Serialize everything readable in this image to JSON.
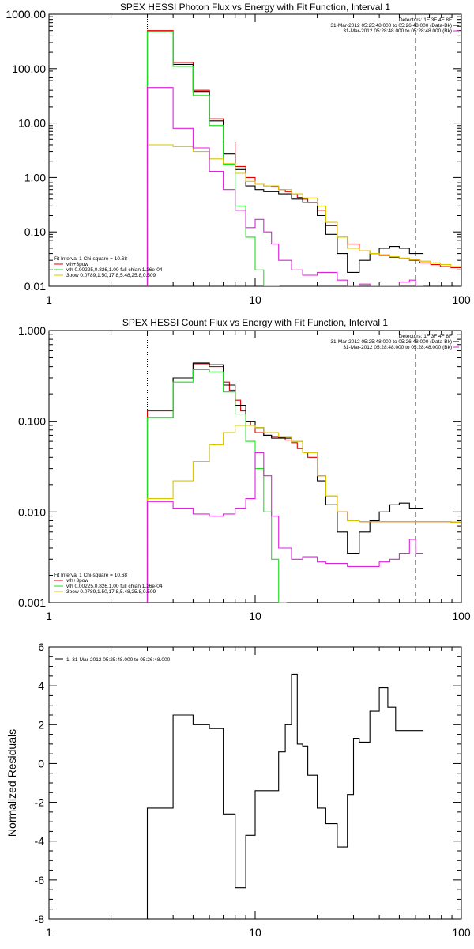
{
  "colors": {
    "black": "#000000",
    "red": "#e00000",
    "green": "#22dd22",
    "magenta": "#dd22dd",
    "gold": "#d9c400"
  },
  "chart_data": [
    {
      "type": "line",
      "title": "SPEX HESSI Photon Flux vs Energy with Fit Function, Interval 1",
      "xlabel": "",
      "ylabel": "",
      "xscale": "log",
      "yscale": "log",
      "xlim": [
        1,
        100
      ],
      "ylim": [
        0.01,
        1000
      ],
      "xticks": [
        "1",
        "10",
        "100"
      ],
      "yticks": [
        "0.01",
        "0.10",
        "1.00",
        "10.00",
        "100.00",
        "1000.00"
      ],
      "header": [
        "Detectors: 1F 3F 4F 8F",
        "31-Mar-2012 05:25:48.000 to 05:26:48.000 (Data-Bk)",
        "31-Mar-2012 05:28:48.000 to 05:28:48.000 (Bk)"
      ],
      "legend": [
        "Fit Interval 1    Chi-square = 10.68",
        "vth+3pow",
        "vth 0.00225,0.826,1.00   full chian 1.26e-04",
        "3pow 0.0789,1.50,17.8,5.48,25.8,0.509"
      ],
      "vlines": [
        3.0,
        60
      ],
      "series": [
        {
          "name": "vth+3pow",
          "color": "red",
          "x": [
            3.0,
            3.5,
            4.0,
            4.5,
            5.0,
            5.5,
            6.0,
            6.5,
            7.0,
            7.5,
            8.0,
            8.5,
            9.0,
            9.5,
            10,
            11,
            12,
            13,
            14,
            15,
            16,
            17,
            18,
            20,
            22,
            25,
            28,
            32,
            36,
            40,
            45,
            50,
            56,
            63,
            71,
            79,
            89,
            100
          ],
          "y": [
            500,
            500,
            130,
            130,
            40,
            40,
            12,
            12,
            4.5,
            4.5,
            1.6,
            1.6,
            1.0,
            1.0,
            0.75,
            0.7,
            0.68,
            0.6,
            0.55,
            0.5,
            0.43,
            0.4,
            0.35,
            0.25,
            0.13,
            0.08,
            0.06,
            0.045,
            0.04,
            0.037,
            0.034,
            0.032,
            0.03,
            0.027,
            0.025,
            0.023,
            0.022,
            0.021
          ]
        },
        {
          "name": "data",
          "color": "black",
          "x": [
            3.0,
            4.0,
            5.0,
            6.0,
            7.0,
            8.0,
            9.0,
            10,
            11,
            13,
            15,
            17,
            20,
            22,
            25,
            28,
            32,
            36,
            40,
            45,
            50,
            56,
            60
          ],
          "y": [
            480,
            120,
            38,
            11,
            2.7,
            1.4,
            0.7,
            0.6,
            0.55,
            0.5,
            0.4,
            0.35,
            0.2,
            0.09,
            0.04,
            0.018,
            0.03,
            0.04,
            0.05,
            0.054,
            0.05,
            0.04,
            0.04
          ]
        },
        {
          "name": "vth",
          "color": "green",
          "x": [
            3.0,
            4.0,
            5.0,
            6.0,
            7.0,
            8.0,
            9.0,
            10,
            11,
            12
          ],
          "y": [
            480,
            110,
            32,
            9,
            1.7,
            0.3,
            0.08,
            0.02,
            0.008,
            0.004
          ]
        },
        {
          "name": "3pow",
          "color": "gold",
          "x": [
            3.0,
            4.0,
            5.0,
            6.0,
            7.0,
            8.0,
            9.0,
            10,
            11,
            13,
            15,
            17,
            20,
            22,
            25,
            28,
            32,
            36,
            40,
            45,
            50,
            56,
            63,
            71,
            79,
            89,
            100
          ],
          "y": [
            4.0,
            3.7,
            3.0,
            2.2,
            1.8,
            1.2,
            0.85,
            0.75,
            0.7,
            0.6,
            0.5,
            0.42,
            0.3,
            0.15,
            0.08,
            0.05,
            0.045,
            0.04,
            0.038,
            0.035,
            0.033,
            0.031,
            0.029,
            0.027,
            0.025,
            0.023,
            0.022
          ]
        },
        {
          "name": "bk",
          "color": "magenta",
          "x": [
            3.0,
            4.0,
            5.0,
            6.0,
            7.0,
            8.0,
            9.0,
            10,
            11,
            12,
            13,
            15,
            17,
            20,
            22,
            25,
            28,
            32,
            36,
            40,
            45,
            50,
            56,
            60
          ],
          "y": [
            45,
            8,
            3.5,
            1.3,
            0.6,
            0.25,
            0.12,
            0.17,
            0.1,
            0.06,
            0.03,
            0.02,
            0.016,
            0.018,
            0.018,
            0.013,
            0.009,
            0.011,
            0.009,
            0.009,
            0.01,
            0.012,
            0.013,
            0.009
          ]
        }
      ]
    },
    {
      "type": "line",
      "title": "SPEX HESSI Count Flux vs Energy with Fit Function, Interval 1",
      "xlabel": "",
      "ylabel": "",
      "xscale": "log",
      "yscale": "log",
      "xlim": [
        1,
        100
      ],
      "ylim": [
        0.001,
        1.0
      ],
      "xticks": [
        "1",
        "10",
        "100"
      ],
      "yticks": [
        "0.001",
        "0.010",
        "0.100",
        "1.000"
      ],
      "header": [
        "Detectors: 1F 3F 4F 8F",
        "31-Mar-2012 05:25:48.000 to 05:26:48.000 (Data-Bk)",
        "31-Mar-2012 05:28:48.000 to 05:28:48.000 (Bk)"
      ],
      "legend": [
        "Fit Interval 1    Chi-square = 10.68",
        "vth+3pow",
        "vth 0.00225,0.826,1.00   full chian 1.26e-04",
        "3pow 0.0789,1.50,17.8,5.48,25.8,0.509"
      ],
      "vlines": [
        3.0,
        60
      ],
      "series": [
        {
          "name": "vth+3pow",
          "color": "red",
          "x": [
            3.0,
            4.0,
            5.0,
            6.0,
            7.0,
            7.5,
            8.0,
            8.5,
            9.0,
            9.5,
            10,
            11,
            12,
            13,
            14,
            15,
            16,
            17,
            18,
            20,
            22,
            25,
            28,
            32,
            36,
            40,
            45,
            50,
            56,
            63,
            71,
            79,
            89,
            100
          ],
          "y": [
            0.13,
            0.3,
            0.43,
            0.4,
            0.27,
            0.22,
            0.17,
            0.13,
            0.1,
            0.09,
            0.075,
            0.07,
            0.068,
            0.066,
            0.062,
            0.058,
            0.05,
            0.045,
            0.04,
            0.025,
            0.015,
            0.01,
            0.008,
            0.0078,
            0.0078,
            0.0078,
            0.0078,
            0.0078,
            0.0078,
            0.0078,
            0.0078,
            0.0078,
            0.0077,
            0.0075
          ]
        },
        {
          "name": "data",
          "color": "black",
          "x": [
            3.0,
            4.0,
            5.0,
            6.0,
            7.0,
            8.0,
            9.0,
            10,
            11,
            12,
            13,
            15,
            17,
            20,
            22,
            25,
            28,
            32,
            36,
            40,
            45,
            50,
            56,
            60
          ],
          "y": [
            0.11,
            0.3,
            0.44,
            0.42,
            0.25,
            0.15,
            0.1,
            0.085,
            0.07,
            0.065,
            0.065,
            0.06,
            0.045,
            0.022,
            0.012,
            0.006,
            0.0035,
            0.006,
            0.008,
            0.01,
            0.012,
            0.0125,
            0.011,
            0.011
          ]
        },
        {
          "name": "vth",
          "color": "green",
          "x": [
            3.0,
            4.0,
            5.0,
            6.0,
            7.0,
            8.0,
            9.0,
            10,
            11,
            12,
            13
          ],
          "y": [
            0.11,
            0.27,
            0.37,
            0.35,
            0.21,
            0.12,
            0.06,
            0.03,
            0.01,
            0.003,
            0.001
          ]
        },
        {
          "name": "3pow",
          "color": "gold",
          "x": [
            3.0,
            4.0,
            5.0,
            6.0,
            7.0,
            8.0,
            9.0,
            10,
            11,
            13,
            15,
            17,
            20,
            22,
            25,
            28,
            32,
            36,
            40,
            45,
            50,
            56,
            63,
            71,
            79,
            89,
            100
          ],
          "y": [
            0.014,
            0.022,
            0.036,
            0.055,
            0.075,
            0.09,
            0.09,
            0.085,
            0.075,
            0.068,
            0.06,
            0.045,
            0.025,
            0.015,
            0.01,
            0.008,
            0.0078,
            0.0078,
            0.0078,
            0.0078,
            0.0078,
            0.0078,
            0.0078,
            0.0078,
            0.0078,
            0.0077,
            0.0075
          ]
        },
        {
          "name": "bk",
          "color": "magenta",
          "x": [
            3.0,
            4.0,
            5.0,
            6.0,
            7.0,
            8.0,
            9.0,
            10,
            11,
            12,
            13,
            15,
            17,
            20,
            22,
            25,
            28,
            32,
            36,
            40,
            45,
            50,
            56,
            60
          ],
          "y": [
            0.013,
            0.011,
            0.0095,
            0.009,
            0.0095,
            0.011,
            0.014,
            0.045,
            0.025,
            0.009,
            0.004,
            0.003,
            0.0032,
            0.0028,
            0.0027,
            0.0027,
            0.0025,
            0.0025,
            0.0025,
            0.0028,
            0.003,
            0.0035,
            0.005,
            0.0035
          ]
        }
      ]
    },
    {
      "type": "line",
      "title": "",
      "xlabel": "",
      "ylabel": "Normalized Residuals",
      "xscale": "log",
      "yscale": "linear",
      "xlim": [
        1,
        100
      ],
      "ylim": [
        -8,
        6
      ],
      "xticks": [
        "1",
        "10",
        "100"
      ],
      "yticks": [
        "-8",
        "-6",
        "-4",
        "-2",
        "0",
        "2",
        "4",
        "6"
      ],
      "legend": [
        "1. 31-Mar-2012 05:25:48.000 to 05:26:48.000"
      ],
      "series": [
        {
          "name": "1. 31-Mar-2012 05:25:48.000 to 05:26:48.000",
          "color": "black",
          "x": [
            3.0,
            4.0,
            5.0,
            6.0,
            7.0,
            8.0,
            9.0,
            10,
            11,
            12,
            13,
            14,
            15,
            16,
            17,
            18,
            20,
            22,
            25,
            28,
            30,
            32,
            36,
            40,
            44,
            48,
            52,
            56,
            60
          ],
          "y": [
            -2.3,
            2.5,
            2.0,
            1.8,
            -2.6,
            -6.4,
            -3.7,
            -1.4,
            -1.4,
            -1.4,
            0.6,
            2.0,
            4.6,
            1.0,
            0.9,
            -0.6,
            -2.3,
            -3.1,
            -4.3,
            -1.6,
            1.3,
            1.1,
            2.7,
            3.9,
            2.9,
            1.7,
            1.7,
            1.7,
            1.7
          ]
        }
      ]
    }
  ]
}
